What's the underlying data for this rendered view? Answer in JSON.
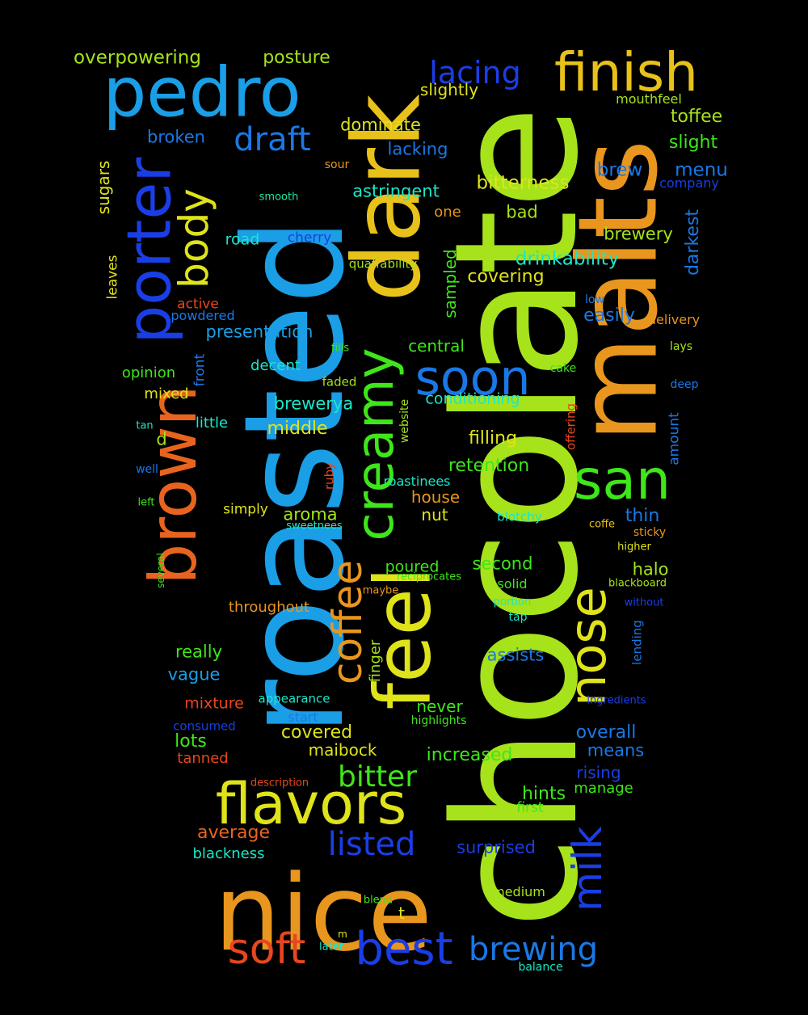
{
  "words": [
    {
      "text": "chocolate",
      "color": "#a6e31a"
    },
    {
      "text": "roasted",
      "color": "#1a9ee6"
    },
    {
      "text": "nice",
      "color": "#e8961e"
    },
    {
      "text": "malts",
      "color": "#e8961e"
    },
    {
      "text": "dark",
      "color": "#e8c21a"
    },
    {
      "text": "feel",
      "color": "#dfe31a"
    },
    {
      "text": "pedro",
      "color": "#1a9ee6"
    },
    {
      "text": "brown",
      "color": "#e8641e"
    },
    {
      "text": "porter",
      "color": "#1a3ee6"
    },
    {
      "text": "creamy",
      "color": "#3ee61a"
    },
    {
      "text": "finish",
      "color": "#e8c21a"
    },
    {
      "text": "flavors",
      "color": "#dfe31a"
    },
    {
      "text": "san",
      "color": "#3ee61a"
    },
    {
      "text": "nose",
      "color": "#dfe31a"
    },
    {
      "text": "soon",
      "color": "#1a78e6"
    },
    {
      "text": "best",
      "color": "#1a3ee6"
    },
    {
      "text": "soft",
      "color": "#e8461e"
    },
    {
      "text": "milk",
      "color": "#1a3ee6"
    },
    {
      "text": "coffee",
      "color": "#e8961e"
    },
    {
      "text": "body",
      "color": "#dfe31a"
    },
    {
      "text": "draft",
      "color": "#1a78e6"
    },
    {
      "text": "brewing",
      "color": "#1a78e6"
    },
    {
      "text": "listed",
      "color": "#1a3ee6"
    },
    {
      "text": "lacing",
      "color": "#1a3ee6"
    },
    {
      "text": "bitter",
      "color": "#3ee61a"
    },
    {
      "text": "overpowering",
      "color": "#a6e31a"
    },
    {
      "text": "posture",
      "color": "#a6e31a"
    },
    {
      "text": "slightly",
      "color": "#dfe31a"
    },
    {
      "text": "mouthfeel",
      "color": "#a6e31a"
    },
    {
      "text": "toffee",
      "color": "#a6e31a"
    },
    {
      "text": "slight",
      "color": "#3ee61a"
    },
    {
      "text": "broken",
      "color": "#1a78e6"
    },
    {
      "text": "dominate",
      "color": "#dfe31a"
    },
    {
      "text": "lacking",
      "color": "#1a78e6"
    },
    {
      "text": "brew",
      "color": "#1a78e6"
    },
    {
      "text": "menu",
      "color": "#1a78e6"
    },
    {
      "text": "company",
      "color": "#1a3ee6"
    },
    {
      "text": "sugars",
      "color": "#dfe31a"
    },
    {
      "text": "sour",
      "color": "#e8961e"
    },
    {
      "text": "smooth",
      "color": "#1ae6a6"
    },
    {
      "text": "astringent",
      "color": "#1ae6c8"
    },
    {
      "text": "bitterness",
      "color": "#dfe31a"
    },
    {
      "text": "one",
      "color": "#e8961e"
    },
    {
      "text": "bad",
      "color": "#a6e31a"
    },
    {
      "text": "darkest",
      "color": "#1a78e6"
    },
    {
      "text": "brewery",
      "color": "#a6e31a"
    },
    {
      "text": "road",
      "color": "#1ae6c8"
    },
    {
      "text": "cherry",
      "color": "#1a3ee6"
    },
    {
      "text": "leaves",
      "color": "#dfe31a"
    },
    {
      "text": "quaffability",
      "color": "#a6e31a"
    },
    {
      "text": "drinkability",
      "color": "#1ae6c8"
    },
    {
      "text": "sampled",
      "color": "#3ee61a"
    },
    {
      "text": "covering",
      "color": "#dfe31a"
    },
    {
      "text": "active",
      "color": "#e8461e"
    },
    {
      "text": "low",
      "color": "#1a78e6"
    },
    {
      "text": "powdered",
      "color": "#1a78e6"
    },
    {
      "text": "easily",
      "color": "#1a78e6"
    },
    {
      "text": "delivery",
      "color": "#e8961e"
    },
    {
      "text": "presentation",
      "color": "#1a9ee6"
    },
    {
      "text": "fills",
      "color": "#3ee61a"
    },
    {
      "text": "central",
      "color": "#3ee61a"
    },
    {
      "text": "lays",
      "color": "#a6e31a"
    },
    {
      "text": "opinion",
      "color": "#3ee61a"
    },
    {
      "text": "front",
      "color": "#1a78e6"
    },
    {
      "text": "decent",
      "color": "#1ae6c8"
    },
    {
      "text": "cake",
      "color": "#3ee61a"
    },
    {
      "text": "faded",
      "color": "#a6e31a"
    },
    {
      "text": "deep",
      "color": "#1a78e6"
    },
    {
      "text": "mixed",
      "color": "#dfe31a"
    },
    {
      "text": "brewerya",
      "color": "#1ae6c8"
    },
    {
      "text": "conditioning",
      "color": "#1ae6c8"
    },
    {
      "text": "website",
      "color": "#a6e31a"
    },
    {
      "text": "offering",
      "color": "#e8461e"
    },
    {
      "text": "tan",
      "color": "#1ae6c8"
    },
    {
      "text": "little",
      "color": "#1ae6c8"
    },
    {
      "text": "middle",
      "color": "#dfe31a"
    },
    {
      "text": "d",
      "color": "#a6e31a"
    },
    {
      "text": "filling",
      "color": "#dfe31a"
    },
    {
      "text": "amount",
      "color": "#1a78e6"
    },
    {
      "text": "well",
      "color": "#1a78e6"
    },
    {
      "text": "ruby",
      "color": "#e8461e"
    },
    {
      "text": "retention",
      "color": "#3ee61a"
    },
    {
      "text": "roastinees",
      "color": "#1ae6c8"
    },
    {
      "text": "left",
      "color": "#3ee61a"
    },
    {
      "text": "house",
      "color": "#e8961e"
    },
    {
      "text": "simply",
      "color": "#dfe31a"
    },
    {
      "text": "aroma",
      "color": "#a6e31a"
    },
    {
      "text": "nut",
      "color": "#dfe31a"
    },
    {
      "text": "blotchy",
      "color": "#1ae6c8"
    },
    {
      "text": "thin",
      "color": "#1a78e6"
    },
    {
      "text": "sweetnees",
      "color": "#1ae6c8"
    },
    {
      "text": "coffe",
      "color": "#e8c21a"
    },
    {
      "text": "sticky",
      "color": "#e8961e"
    },
    {
      "text": "several",
      "color": "#3ee61a"
    },
    {
      "text": "poured",
      "color": "#3ee61a"
    },
    {
      "text": "second",
      "color": "#3ee61a"
    },
    {
      "text": "higher",
      "color": "#dfe31a"
    },
    {
      "text": "halo",
      "color": "#a6e31a"
    },
    {
      "text": "reciprocates",
      "color": "#3ee61a"
    },
    {
      "text": "solid",
      "color": "#3ee61a"
    },
    {
      "text": "blackboard",
      "color": "#a6e31a"
    },
    {
      "text": "maybe",
      "color": "#e8961e"
    },
    {
      "text": "portion",
      "color": "#1ae6c8"
    },
    {
      "text": "without",
      "color": "#1a3ee6"
    },
    {
      "text": "throughout",
      "color": "#e8961e"
    },
    {
      "text": "tap",
      "color": "#1ae6c8"
    },
    {
      "text": "lending",
      "color": "#1a78e6"
    },
    {
      "text": "finger",
      "color": "#a6e31a"
    },
    {
      "text": "really",
      "color": "#3ee61a"
    },
    {
      "text": "assists",
      "color": "#1a78e6"
    },
    {
      "text": "vague",
      "color": "#1a9ee6"
    },
    {
      "text": "appearance",
      "color": "#1ae6c8"
    },
    {
      "text": "mixture",
      "color": "#e8461e"
    },
    {
      "text": "never",
      "color": "#3ee61a"
    },
    {
      "text": "ingredients",
      "color": "#1a3ee6"
    },
    {
      "text": "consumed",
      "color": "#1a3ee6"
    },
    {
      "text": "start",
      "color": "#1a78e6"
    },
    {
      "text": "highlights",
      "color": "#3ee61a"
    },
    {
      "text": "overall",
      "color": "#1a78e6"
    },
    {
      "text": "lots",
      "color": "#3ee61a"
    },
    {
      "text": "covered",
      "color": "#dfe31a"
    },
    {
      "text": "maibock",
      "color": "#dfe31a"
    },
    {
      "text": "means",
      "color": "#1a78e6"
    },
    {
      "text": "tanned",
      "color": "#e8461e"
    },
    {
      "text": "increased",
      "color": "#3ee61a"
    },
    {
      "text": "rising",
      "color": "#1a3ee6"
    },
    {
      "text": "description",
      "color": "#e8461e"
    },
    {
      "text": "manage",
      "color": "#3ee61a"
    },
    {
      "text": "hints",
      "color": "#3ee61a"
    },
    {
      "text": "first",
      "color": "#3ee61a"
    },
    {
      "text": "average",
      "color": "#e8641e"
    },
    {
      "text": "surprised",
      "color": "#1a3ee6"
    },
    {
      "text": "blackness",
      "color": "#1ae6c8"
    },
    {
      "text": "medium",
      "color": "#a6e31a"
    },
    {
      "text": "blend",
      "color": "#3ee61a"
    },
    {
      "text": "t",
      "color": "#dfe31a"
    },
    {
      "text": "m",
      "color": "#dfe31a"
    },
    {
      "text": "later",
      "color": "#1ae6c8"
    },
    {
      "text": "balance",
      "color": "#1ae6c8"
    }
  ]
}
